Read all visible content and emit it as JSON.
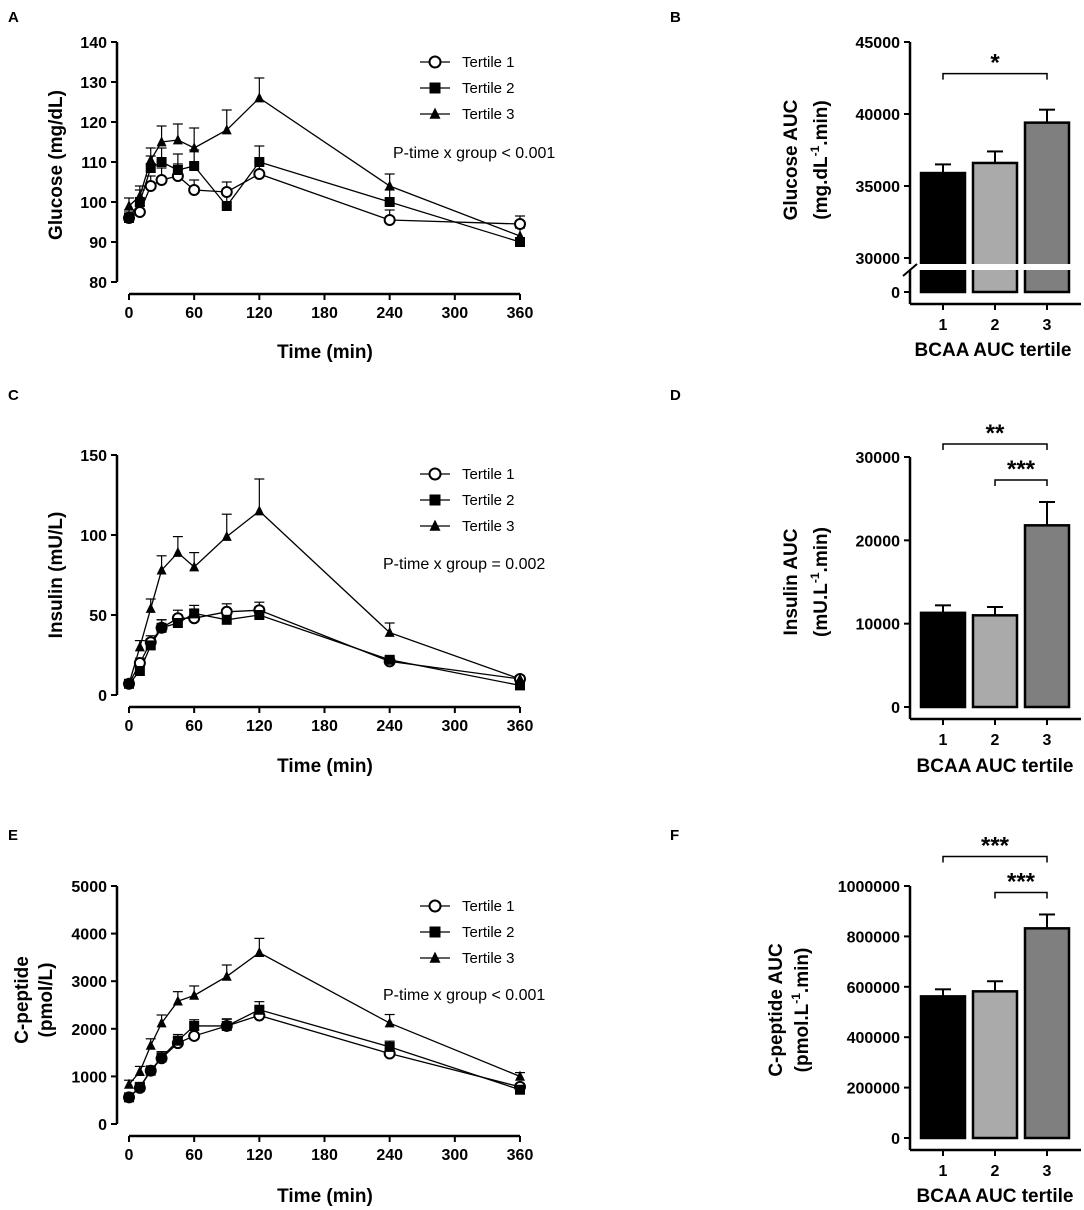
{
  "chart_data": [
    {
      "panel": "A",
      "type": "line",
      "xlabel": "Time (min)",
      "ylabel": "Glucose (mg/dL)",
      "xlim": [
        0,
        360
      ],
      "ylim": [
        80,
        140
      ],
      "xticks": [
        0,
        60,
        120,
        180,
        240,
        300,
        360
      ],
      "yticks": [
        80,
        90,
        100,
        110,
        120,
        130,
        140
      ],
      "annotation": "P-time x group < 0.001",
      "legend_position": "top-right",
      "x": [
        0,
        10,
        20,
        30,
        45,
        60,
        90,
        120,
        240,
        360
      ],
      "series": [
        {
          "name": "Tertile 1",
          "marker": "circle-open",
          "values": [
            96,
            97.5,
            104,
            105.5,
            106.5,
            103,
            102.5,
            107,
            95.5,
            94.5
          ],
          "errors": [
            1.5,
            1.5,
            2.5,
            3,
            3,
            2.5,
            2.5,
            3,
            2.5,
            2
          ]
        },
        {
          "name": "Tertile 2",
          "marker": "square",
          "values": [
            96,
            100,
            108.5,
            110,
            108,
            109,
            99,
            110,
            100,
            90
          ],
          "errors": [
            2,
            3,
            3,
            3.5,
            4,
            4,
            4,
            4,
            3,
            1
          ]
        },
        {
          "name": "Tertile 3",
          "marker": "triangle",
          "values": [
            99,
            101.5,
            110.5,
            115,
            115.5,
            113.5,
            118,
            126,
            104,
            91.5
          ],
          "errors": [
            2,
            2.5,
            3,
            4,
            4,
            5,
            5,
            5,
            3,
            2
          ]
        }
      ]
    },
    {
      "panel": "B",
      "type": "bar",
      "xlabel": "BCAA AUC tertile",
      "ylabel_line1": "Glucose AUC",
      "ylabel_line2_prefix": "(mg.dL",
      "ylabel_sup": "-1",
      "ylabel_line2_suffix": ".min)",
      "categories": [
        "1",
        "2",
        "3"
      ],
      "values": [
        35900,
        36600,
        39400
      ],
      "errors": [
        600,
        800,
        900
      ],
      "colors": [
        "#000000",
        "#aaaaaa",
        "#7f7f7f"
      ],
      "broken_axis": true,
      "ylim": [
        30000,
        45000
      ],
      "yticks": [
        30000,
        35000,
        40000,
        45000
      ],
      "ytick_labels": [
        "30000",
        "35000",
        "40000",
        "45000"
      ],
      "break_tick": "0",
      "significance": [
        {
          "from": 0,
          "to": 2,
          "label": "*"
        }
      ]
    },
    {
      "panel": "C",
      "type": "line",
      "xlabel": "Time (min)",
      "ylabel": "Insulin (mU/L)",
      "xlim": [
        0,
        360
      ],
      "ylim": [
        0,
        150
      ],
      "xticks": [
        0,
        60,
        120,
        180,
        240,
        300,
        360
      ],
      "yticks": [
        0,
        50,
        100,
        150
      ],
      "annotation": "P-time x group = 0.002",
      "legend_position": "top-right",
      "x": [
        0,
        10,
        20,
        30,
        45,
        60,
        90,
        120,
        240,
        360
      ],
      "series": [
        {
          "name": "Tertile 1",
          "marker": "circle-open",
          "values": [
            7,
            20,
            33,
            42,
            48,
            48,
            52,
            53,
            21,
            10
          ],
          "errors": [
            2,
            3,
            4,
            5,
            5,
            5,
            5,
            5,
            2,
            1
          ]
        },
        {
          "name": "Tertile 2",
          "marker": "square",
          "values": [
            7,
            15,
            31,
            42,
            45,
            51,
            47,
            50,
            22,
            6
          ],
          "errors": [
            2,
            3,
            4,
            5,
            5,
            5,
            5,
            5,
            2,
            1
          ]
        },
        {
          "name": "Tertile 3",
          "marker": "triangle",
          "values": [
            7,
            30,
            54,
            78,
            89,
            80,
            99,
            115,
            39,
            10
          ],
          "errors": [
            2,
            4,
            6,
            9,
            10,
            9,
            14,
            20,
            6,
            2
          ]
        }
      ]
    },
    {
      "panel": "D",
      "type": "bar",
      "xlabel": "BCAA AUC tertile",
      "ylabel_line1": "Insulin AUC",
      "ylabel_line2_prefix": "(mU.L",
      "ylabel_sup": "-1",
      "ylabel_line2_suffix": ".min)",
      "categories": [
        "1",
        "2",
        "3"
      ],
      "values": [
        11300,
        11000,
        21800
      ],
      "errors": [
        900,
        1000,
        2800
      ],
      "colors": [
        "#000000",
        "#aaaaaa",
        "#7f7f7f"
      ],
      "broken_axis": false,
      "ylim": [
        0,
        30000
      ],
      "yticks": [
        0,
        10000,
        20000,
        30000
      ],
      "ytick_labels": [
        "0",
        "10000",
        "20000",
        "30000"
      ],
      "significance": [
        {
          "from": 0,
          "to": 2,
          "label": "**"
        },
        {
          "from": 1,
          "to": 2,
          "label": "***"
        }
      ]
    },
    {
      "panel": "E",
      "type": "line",
      "xlabel": "Time (min)",
      "ylabel_line1": "C-peptide",
      "ylabel_line2": "(pmol/L)",
      "xlim": [
        0,
        360
      ],
      "ylim": [
        0,
        5000
      ],
      "xticks": [
        0,
        60,
        120,
        180,
        240,
        300,
        360
      ],
      "yticks": [
        0,
        1000,
        2000,
        3000,
        4000,
        5000
      ],
      "annotation": "P-time x group < 0.001",
      "legend_position": "top-right",
      "x": [
        0,
        10,
        20,
        30,
        45,
        60,
        90,
        120,
        240,
        360
      ],
      "series": [
        {
          "name": "Tertile 1",
          "marker": "circle-open",
          "values": [
            560,
            760,
            1120,
            1380,
            1700,
            1850,
            2060,
            2280,
            1480,
            780
          ],
          "errors": [
            60,
            70,
            90,
            100,
            120,
            120,
            140,
            160,
            110,
            60
          ]
        },
        {
          "name": "Tertile 2",
          "marker": "square",
          "values": [
            560,
            780,
            1120,
            1400,
            1750,
            2060,
            2060,
            2400,
            1620,
            720
          ],
          "errors": [
            60,
            80,
            100,
            120,
            130,
            130,
            150,
            170,
            120,
            60
          ]
        },
        {
          "name": "Tertile 3",
          "marker": "triangle",
          "values": [
            830,
            1100,
            1650,
            2120,
            2580,
            2700,
            3100,
            3600,
            2120,
            1000
          ],
          "errors": [
            90,
            110,
            140,
            170,
            200,
            200,
            240,
            300,
            180,
            80
          ]
        }
      ]
    },
    {
      "panel": "F",
      "type": "bar",
      "xlabel": "BCAA AUC tertile",
      "ylabel_line1": "C-peptide AUC",
      "ylabel_line2_prefix": "(pmol.L",
      "ylabel_sup": "-1",
      "ylabel_line2_suffix": ".min)",
      "categories": [
        "1",
        "2",
        "3"
      ],
      "values": [
        562000,
        582000,
        832000
      ],
      "errors": [
        28000,
        40000,
        55000
      ],
      "colors": [
        "#000000",
        "#aaaaaa",
        "#7f7f7f"
      ],
      "broken_axis": false,
      "ylim": [
        0,
        1000000
      ],
      "yticks": [
        0,
        200000,
        400000,
        600000,
        800000,
        1000000
      ],
      "ytick_labels": [
        "0",
        "200000",
        "400000",
        "600000",
        "800000",
        "1000000"
      ],
      "significance": [
        {
          "from": 0,
          "to": 2,
          "label": "***"
        },
        {
          "from": 1,
          "to": 2,
          "label": "***"
        }
      ]
    }
  ]
}
